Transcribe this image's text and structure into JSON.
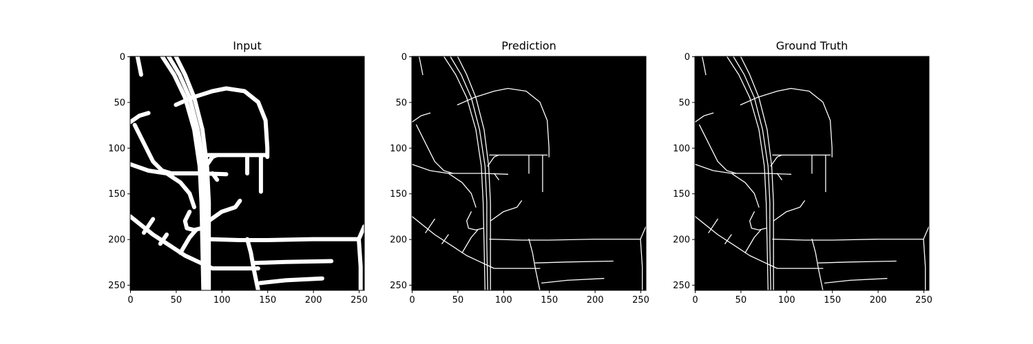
{
  "figure": {
    "panels": [
      {
        "id": "input",
        "title": "Input",
        "x_ticks": [
          "0",
          "50",
          "100",
          "150",
          "200",
          "250"
        ],
        "y_ticks": [
          "0",
          "50",
          "100",
          "150",
          "200",
          "250"
        ],
        "stroke_style": "thick"
      },
      {
        "id": "prediction",
        "title": "Prediction",
        "x_ticks": [
          "0",
          "50",
          "100",
          "150",
          "200",
          "250"
        ],
        "y_ticks": [
          "0",
          "50",
          "100",
          "150",
          "200",
          "250"
        ],
        "stroke_style": "thin"
      },
      {
        "id": "ground-truth",
        "title": "Ground Truth",
        "x_ticks": [
          "0",
          "50",
          "100",
          "150",
          "200",
          "250"
        ],
        "y_ticks": [
          "0",
          "50",
          "100",
          "150",
          "200",
          "250"
        ],
        "stroke_style": "thin"
      }
    ],
    "colors": {
      "background": "#000000",
      "road": "#ffffff",
      "page": "#ffffff"
    }
  }
}
